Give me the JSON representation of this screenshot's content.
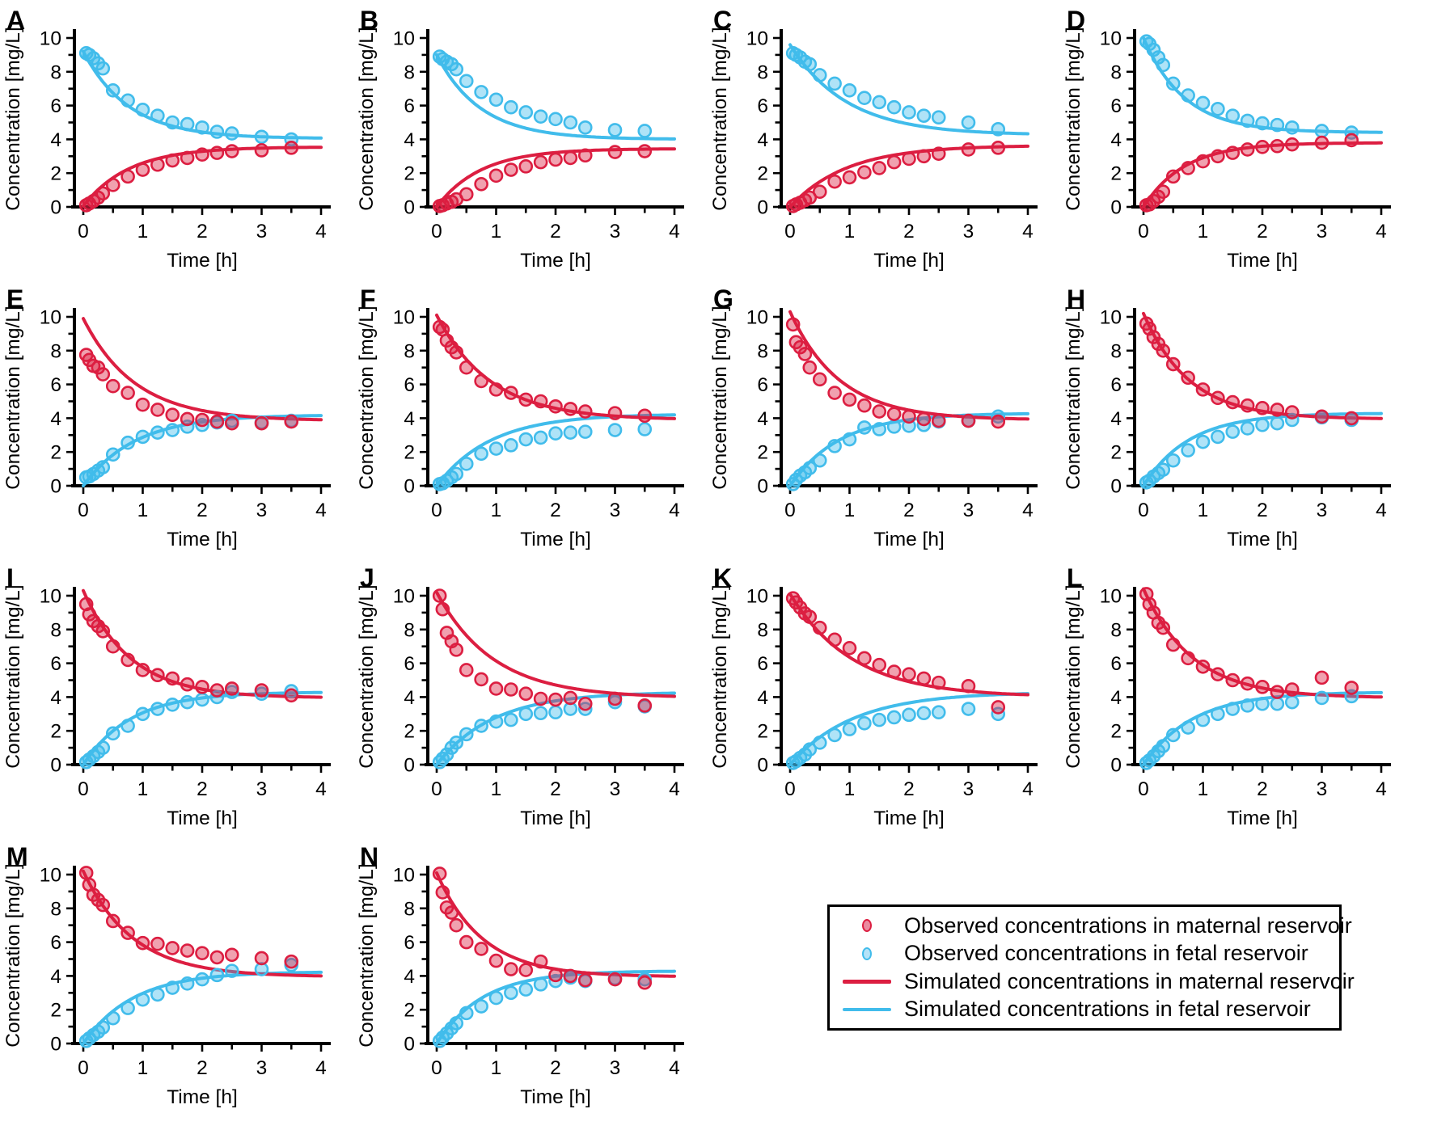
{
  "figure": {
    "background": "#ffffff",
    "colors": {
      "maternal": "#DC1E41",
      "fetal": "#41BCEB",
      "axis": "#000000",
      "dot_fill_opacity": 0.42
    },
    "axis": {
      "x_label": "Time [h]",
      "y_label": "Concentration [mg/L]",
      "xlim": [
        0,
        4
      ],
      "ylim": [
        0,
        10
      ],
      "x_ticks": [
        0,
        1,
        2,
        3,
        4
      ],
      "y_ticks": [
        0,
        2,
        4,
        6,
        8,
        10
      ],
      "x_minor_step": 0.5,
      "y_minor_step": 1,
      "grid": "off"
    }
  },
  "legend": {
    "items": [
      {
        "marker": "dot",
        "series": "maternal",
        "label": "Observed concentrations in maternal reservoir"
      },
      {
        "marker": "dot",
        "series": "fetal",
        "label": "Observed concentrations in fetal reservoir"
      },
      {
        "marker": "line",
        "series": "maternal",
        "label": "Simulated concentrations in maternal reservoir"
      },
      {
        "marker": "line",
        "series": "fetal",
        "label": "Simulated concentrations in fetal reservoir"
      }
    ]
  },
  "chart_data": {
    "type": "line+scatter",
    "x_label": "Time [h]",
    "y_label": "Concentration [mg/L]",
    "xlim": [
      0,
      4
    ],
    "ylim": [
      0,
      10
    ],
    "legend_position": "bottom-right",
    "series_names": [
      "Observed maternal",
      "Observed fetal",
      "Simulated maternal",
      "Simulated fetal"
    ],
    "obs_t": [
      0.05,
      0.1,
      0.17,
      0.25,
      0.33,
      0.5,
      0.75,
      1,
      1.25,
      1.5,
      1.75,
      2,
      2.25,
      2.5,
      3,
      3.5
    ],
    "panels": [
      {
        "letter": "A",
        "obs_maternal": [
          0.1,
          0.2,
          0.35,
          0.55,
          0.8,
          1.3,
          1.8,
          2.2,
          2.5,
          2.75,
          2.9,
          3.1,
          3.2,
          3.3,
          3.35,
          3.5
        ],
        "obs_fetal": [
          9.1,
          9.0,
          8.8,
          8.5,
          8.2,
          6.9,
          6.3,
          5.75,
          5.4,
          5.0,
          4.9,
          4.7,
          4.45,
          4.35,
          4.15,
          4.0
        ],
        "sim_maternal": {
          "c0": 0.05,
          "ceq": 3.55,
          "k": 1.3
        },
        "sim_fetal": {
          "c0": 9.2,
          "ceq": 4.05,
          "k": 1.3
        }
      },
      {
        "letter": "B",
        "obs_maternal": [
          0.05,
          0.1,
          0.2,
          0.3,
          0.45,
          0.75,
          1.35,
          1.85,
          2.2,
          2.4,
          2.65,
          2.8,
          2.9,
          3.05,
          3.25,
          3.3
        ],
        "obs_fetal": [
          8.9,
          8.75,
          8.6,
          8.45,
          8.15,
          7.45,
          6.8,
          6.35,
          5.9,
          5.6,
          5.35,
          5.2,
          5.0,
          4.7,
          4.55,
          4.5
        ],
        "sim_maternal": {
          "c0": 0.0,
          "ceq": 3.45,
          "k": 1.35
        },
        "sim_fetal": {
          "c0": 9.0,
          "ceq": 4.0,
          "k": 1.35
        }
      },
      {
        "letter": "C",
        "obs_maternal": [
          0.05,
          0.15,
          0.25,
          0.4,
          0.55,
          0.9,
          1.5,
          1.75,
          2.05,
          2.3,
          2.65,
          2.85,
          3.0,
          3.15,
          3.4,
          3.5
        ],
        "obs_fetal": [
          9.1,
          9.0,
          8.85,
          8.6,
          8.45,
          7.8,
          7.3,
          6.9,
          6.45,
          6.2,
          5.9,
          5.6,
          5.4,
          5.3,
          5.0,
          4.6
        ],
        "sim_maternal": {
          "c0": 0.0,
          "ceq": 3.65,
          "k": 1.05
        },
        "sim_fetal": {
          "c0": 9.6,
          "ceq": 4.25,
          "k": 1.05
        }
      },
      {
        "letter": "D",
        "obs_maternal": [
          0.1,
          0.15,
          0.35,
          0.6,
          0.9,
          1.8,
          2.3,
          2.7,
          3.0,
          3.2,
          3.4,
          3.55,
          3.6,
          3.7,
          3.8,
          3.95
        ],
        "obs_fetal": [
          9.8,
          9.65,
          9.3,
          8.85,
          8.4,
          7.3,
          6.6,
          6.15,
          5.8,
          5.4,
          5.1,
          4.95,
          4.85,
          4.7,
          4.5,
          4.4
        ],
        "sim_maternal": {
          "c0": 0.0,
          "ceq": 3.8,
          "k": 1.45
        },
        "sim_fetal": {
          "c0": 10.0,
          "ceq": 4.4,
          "k": 1.45
        }
      },
      {
        "letter": "E",
        "obs_maternal": [
          7.75,
          7.45,
          7.1,
          7.0,
          6.6,
          5.9,
          5.5,
          4.8,
          4.5,
          4.2,
          3.95,
          3.9,
          3.8,
          3.7,
          3.7,
          3.8
        ],
        "obs_fetal": [
          0.5,
          0.55,
          0.7,
          0.9,
          1.1,
          1.85,
          2.55,
          2.9,
          3.15,
          3.3,
          3.5,
          3.6,
          3.75,
          3.85,
          3.75,
          3.85
        ],
        "sim_maternal": {
          "c0": 9.9,
          "ceq": 3.85,
          "k": 1.15
        },
        "sim_fetal": {
          "c0": 0.0,
          "ceq": 4.2,
          "k": 1.15
        }
      },
      {
        "letter": "F",
        "obs_maternal": [
          9.4,
          9.25,
          8.6,
          8.2,
          7.9,
          7.0,
          6.2,
          5.7,
          5.5,
          5.1,
          5.0,
          4.7,
          4.55,
          4.4,
          4.3,
          4.15
        ],
        "obs_fetal": [
          0.1,
          0.15,
          0.3,
          0.5,
          0.7,
          1.3,
          1.9,
          2.2,
          2.4,
          2.75,
          2.85,
          3.1,
          3.15,
          3.2,
          3.3,
          3.35
        ],
        "sim_maternal": {
          "c0": 10.1,
          "ceq": 3.9,
          "k": 1.1
        },
        "sim_fetal": {
          "c0": 0.0,
          "ceq": 4.25,
          "k": 1.1
        }
      },
      {
        "letter": "G",
        "obs_maternal": [
          9.55,
          8.5,
          8.2,
          7.8,
          7.0,
          6.3,
          5.5,
          5.1,
          4.75,
          4.4,
          4.25,
          4.1,
          3.95,
          3.85,
          3.85,
          3.8
        ],
        "obs_fetal": [
          0.1,
          0.35,
          0.6,
          0.8,
          1.05,
          1.5,
          2.35,
          2.75,
          3.45,
          3.35,
          3.5,
          3.55,
          3.6,
          3.8,
          3.85,
          4.1
        ],
        "sim_maternal": {
          "c0": 10.3,
          "ceq": 3.9,
          "k": 1.2
        },
        "sim_fetal": {
          "c0": 0.0,
          "ceq": 4.3,
          "k": 1.2
        }
      },
      {
        "letter": "H",
        "obs_maternal": [
          9.6,
          9.3,
          8.8,
          8.4,
          8.0,
          7.2,
          6.4,
          5.7,
          5.2,
          4.95,
          4.75,
          4.6,
          4.5,
          4.35,
          4.1,
          4.0
        ],
        "obs_fetal": [
          0.2,
          0.3,
          0.55,
          0.75,
          0.95,
          1.5,
          2.1,
          2.6,
          2.9,
          3.2,
          3.4,
          3.6,
          3.7,
          3.9,
          4.05,
          3.9
        ],
        "sim_maternal": {
          "c0": 10.2,
          "ceq": 3.95,
          "k": 1.3
        },
        "sim_fetal": {
          "c0": 0.0,
          "ceq": 4.3,
          "k": 1.3
        }
      },
      {
        "letter": "I",
        "obs_maternal": [
          9.5,
          8.9,
          8.5,
          8.2,
          7.9,
          7.0,
          6.2,
          5.6,
          5.3,
          5.1,
          4.75,
          4.6,
          4.4,
          4.5,
          4.4,
          4.1
        ],
        "obs_fetal": [
          0.15,
          0.3,
          0.5,
          0.75,
          1.0,
          1.85,
          2.3,
          3.0,
          3.3,
          3.55,
          3.7,
          3.85,
          4.0,
          4.3,
          4.2,
          4.35
        ],
        "sim_maternal": {
          "c0": 10.3,
          "ceq": 3.95,
          "k": 1.25
        },
        "sim_fetal": {
          "c0": 0.0,
          "ceq": 4.3,
          "k": 1.25
        }
      },
      {
        "letter": "J",
        "obs_maternal": [
          10.0,
          9.2,
          7.8,
          7.3,
          6.8,
          5.6,
          5.05,
          4.5,
          4.45,
          4.2,
          3.9,
          3.85,
          3.95,
          3.6,
          3.9,
          3.5
        ],
        "obs_fetal": [
          0.15,
          0.35,
          0.6,
          1.0,
          1.3,
          1.8,
          2.3,
          2.55,
          2.65,
          3.0,
          3.05,
          3.1,
          3.3,
          3.3,
          3.7,
          3.45
        ],
        "sim_maternal": {
          "c0": 10.2,
          "ceq": 3.95,
          "k": 1.05
        },
        "sim_fetal": {
          "c0": 0.0,
          "ceq": 4.3,
          "k": 1.05
        }
      },
      {
        "letter": "K",
        "obs_maternal": [
          9.85,
          9.6,
          9.3,
          8.95,
          8.75,
          8.1,
          7.4,
          6.9,
          6.3,
          5.9,
          5.5,
          5.35,
          5.1,
          4.85,
          4.65,
          3.4
        ],
        "obs_fetal": [
          0.1,
          0.2,
          0.4,
          0.6,
          0.9,
          1.3,
          1.75,
          2.1,
          2.45,
          2.65,
          2.8,
          2.95,
          3.05,
          3.1,
          3.3,
          3.0
        ],
        "sim_maternal": {
          "c0": 10.1,
          "ceq": 4.0,
          "k": 0.95
        },
        "sim_fetal": {
          "c0": 0.0,
          "ceq": 4.3,
          "k": 0.95
        }
      },
      {
        "letter": "L",
        "obs_maternal": [
          10.1,
          9.5,
          9.0,
          8.4,
          8.1,
          7.1,
          6.3,
          5.8,
          5.35,
          5.0,
          4.8,
          4.6,
          4.3,
          4.45,
          5.15,
          4.55
        ],
        "obs_fetal": [
          0.1,
          0.25,
          0.5,
          0.8,
          1.1,
          1.75,
          2.2,
          2.65,
          3.0,
          3.3,
          3.5,
          3.6,
          3.6,
          3.7,
          3.95,
          4.05
        ],
        "sim_maternal": {
          "c0": 10.4,
          "ceq": 3.95,
          "k": 1.2
        },
        "sim_fetal": {
          "c0": 0.0,
          "ceq": 4.3,
          "k": 1.2
        }
      },
      {
        "letter": "M",
        "obs_maternal": [
          10.1,
          9.4,
          8.8,
          8.5,
          8.2,
          7.25,
          6.55,
          5.95,
          5.9,
          5.65,
          5.5,
          5.35,
          5.1,
          5.25,
          5.05,
          4.85
        ],
        "obs_fetal": [
          0.15,
          0.3,
          0.5,
          0.7,
          0.95,
          1.5,
          2.1,
          2.6,
          2.9,
          3.3,
          3.55,
          3.8,
          4.05,
          4.3,
          4.4,
          4.65
        ],
        "sim_maternal": {
          "c0": 10.2,
          "ceq": 3.95,
          "k": 1.2
        },
        "sim_fetal": {
          "c0": 0.0,
          "ceq": 4.25,
          "k": 1.2
        }
      },
      {
        "letter": "N",
        "obs_maternal": [
          10.05,
          8.95,
          8.05,
          7.75,
          7.0,
          6.0,
          5.6,
          4.9,
          4.4,
          4.35,
          4.85,
          4.05,
          4.0,
          3.75,
          3.8,
          3.6
        ],
        "obs_fetal": [
          0.15,
          0.35,
          0.6,
          0.9,
          1.2,
          1.8,
          2.2,
          2.7,
          3.0,
          3.2,
          3.5,
          3.7,
          3.9,
          3.7,
          3.85,
          3.8
        ],
        "sim_maternal": {
          "c0": 10.1,
          "ceq": 3.95,
          "k": 1.3
        },
        "sim_fetal": {
          "c0": 0.0,
          "ceq": 4.3,
          "k": 1.3
        }
      }
    ]
  }
}
